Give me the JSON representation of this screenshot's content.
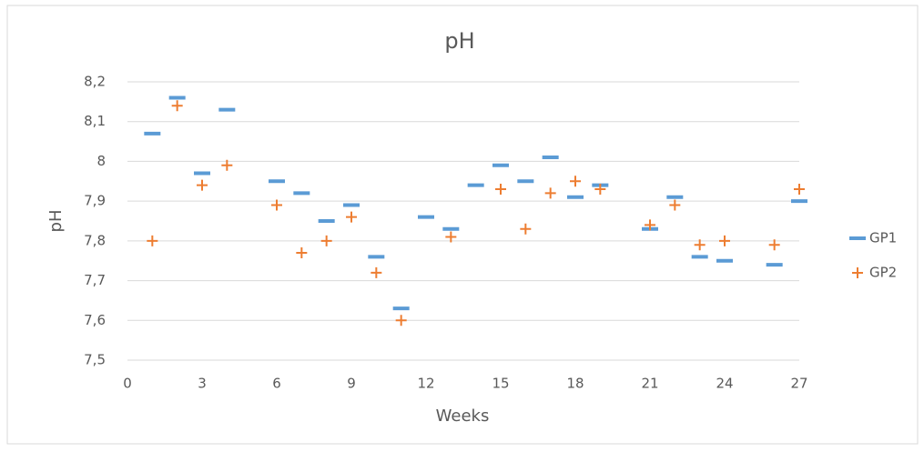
{
  "chart_data": {
    "type": "scatter",
    "title": "pH",
    "xlabel": "Weeks",
    "ylabel": "pH",
    "xlim": [
      0,
      27
    ],
    "xticks": [
      0,
      3,
      6,
      9,
      12,
      15,
      18,
      21,
      24,
      27
    ],
    "ylim": [
      7.5,
      8.2
    ],
    "yticks": [
      {
        "value": 7.5,
        "label": "7,5"
      },
      {
        "value": 7.6,
        "label": "7,6"
      },
      {
        "value": 7.7,
        "label": "7,7"
      },
      {
        "value": 7.8,
        "label": "7,8"
      },
      {
        "value": 7.9,
        "label": "7,9"
      },
      8,
      {
        "value": 8.1,
        "label": "8,1"
      },
      {
        "value": 8.2,
        "label": "8,2"
      }
    ],
    "grid": true,
    "legend": "right",
    "series": [
      {
        "name": "GP1",
        "color": "#5b9bd5",
        "marker": "dash",
        "x": [
          1,
          2,
          3,
          4,
          6,
          7,
          8,
          9,
          10,
          11,
          12,
          13,
          14,
          15,
          16,
          17,
          18,
          19,
          21,
          22,
          23,
          24,
          26,
          27
        ],
        "values": [
          8.07,
          8.16,
          7.97,
          8.13,
          7.95,
          7.92,
          7.85,
          7.89,
          7.76,
          7.63,
          7.86,
          7.83,
          7.94,
          7.99,
          7.95,
          8.01,
          7.91,
          7.94,
          7.83,
          7.91,
          7.76,
          7.75,
          7.74,
          7.9
        ]
      },
      {
        "name": "GP2",
        "color": "#ed7d31",
        "marker": "plus",
        "x": [
          1,
          2,
          3,
          4,
          6,
          7,
          8,
          9,
          10,
          11,
          13,
          15,
          16,
          17,
          18,
          19,
          21,
          22,
          23,
          24,
          26,
          27
        ],
        "values": [
          7.8,
          8.14,
          7.94,
          7.99,
          7.89,
          7.77,
          7.8,
          7.86,
          7.72,
          7.6,
          7.81,
          7.93,
          7.83,
          7.92,
          7.95,
          7.93,
          7.84,
          7.89,
          7.79,
          7.8,
          7.79,
          7.93
        ]
      }
    ]
  }
}
